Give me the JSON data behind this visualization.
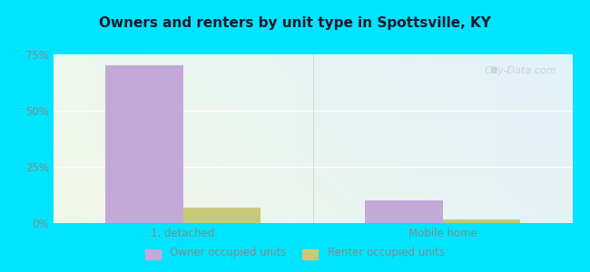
{
  "title": "Owners and renters by unit type in Spottsville, KY",
  "categories": [
    "1, detached",
    "Mobile home"
  ],
  "owner_values": [
    70.0,
    10.0
  ],
  "renter_values": [
    7.0,
    1.5
  ],
  "owner_color": "#c4a8d8",
  "renter_color": "#c8c87a",
  "ylim": [
    0,
    75
  ],
  "yticks": [
    0,
    25,
    50,
    75
  ],
  "ytick_labels": [
    "0%",
    "25%",
    "50%",
    "75%"
  ],
  "bar_width": 0.3,
  "outer_color": "#00e5ff",
  "watermark": "City-Data.com",
  "legend_owner": "Owner occupied units",
  "legend_renter": "Renter occupied units",
  "title_color": "#1a1a2e",
  "tick_color": "#888888",
  "grid_color": "#ffffff",
  "bg_left_top": "#e8f5e8",
  "bg_right_bottom": "#d8f0ee"
}
